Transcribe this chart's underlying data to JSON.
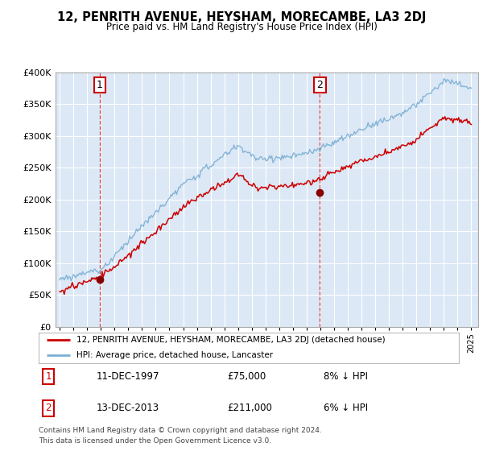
{
  "title": "12, PENRITH AVENUE, HEYSHAM, MORECAMBE, LA3 2DJ",
  "subtitle": "Price paid vs. HM Land Registry's House Price Index (HPI)",
  "legend_line1": "12, PENRITH AVENUE, HEYSHAM, MORECAMBE, LA3 2DJ (detached house)",
  "legend_line2": "HPI: Average price, detached house, Lancaster",
  "annotation1_label": "1",
  "annotation1_date": "11-DEC-1997",
  "annotation1_price": "£75,000",
  "annotation1_hpi": "8% ↓ HPI",
  "annotation2_label": "2",
  "annotation2_date": "13-DEC-2013",
  "annotation2_price": "£211,000",
  "annotation2_hpi": "6% ↓ HPI",
  "footer": "Contains HM Land Registry data © Crown copyright and database right 2024.\nThis data is licensed under the Open Government Licence v3.0.",
  "price_color": "#cc0000",
  "hpi_color": "#7bafd4",
  "ylim": [
    0,
    400000
  ],
  "yticks": [
    0,
    50000,
    100000,
    150000,
    200000,
    250000,
    300000,
    350000,
    400000
  ],
  "sale1_year": 1997.92,
  "sale1_price": 75000,
  "sale2_year": 2013.95,
  "sale2_price": 211000,
  "background_color": "#ffffff",
  "plot_bg_color": "#dce8f5"
}
